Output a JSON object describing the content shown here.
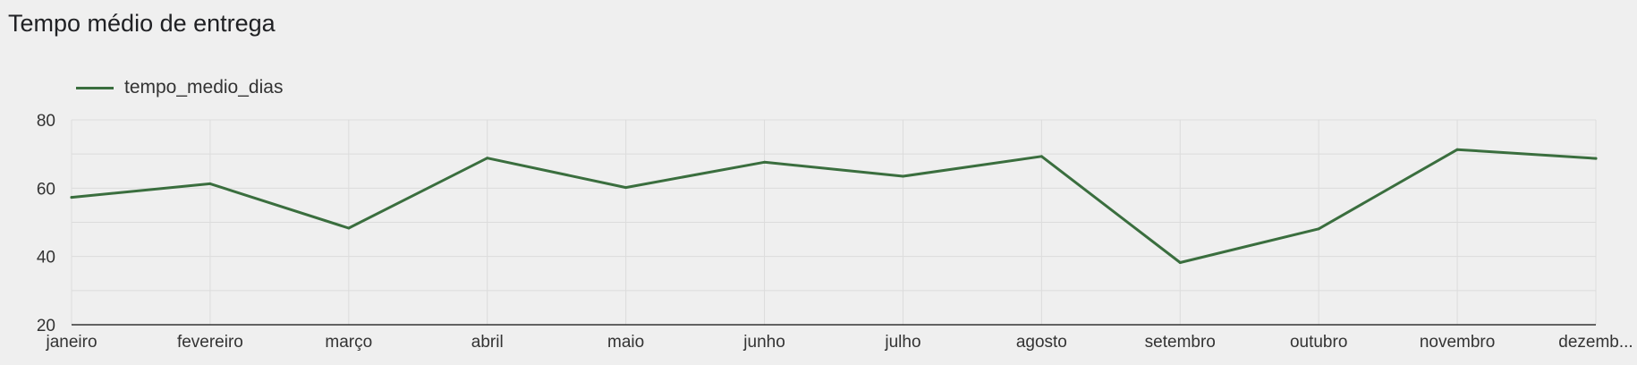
{
  "chart_data": {
    "type": "line",
    "title": "Tempo médio de entrega",
    "xlabel": "",
    "ylabel": "",
    "categories": [
      "janeiro",
      "fevereiro",
      "março",
      "abril",
      "maio",
      "junho",
      "julho",
      "agosto",
      "setembro",
      "outubro",
      "novembro",
      "dezemb..."
    ],
    "series": [
      {
        "name": "tempo_medio_dias",
        "color": "#3a6e3e",
        "values": [
          57.3,
          61.3,
          48.3,
          68.8,
          60.2,
          67.6,
          63.5,
          69.3,
          38.2,
          48.1,
          71.3,
          68.7
        ]
      }
    ],
    "ylim": [
      20,
      80
    ],
    "yticks": [
      20,
      40,
      60,
      80
    ],
    "grid": true,
    "legend_position": "top-left"
  }
}
